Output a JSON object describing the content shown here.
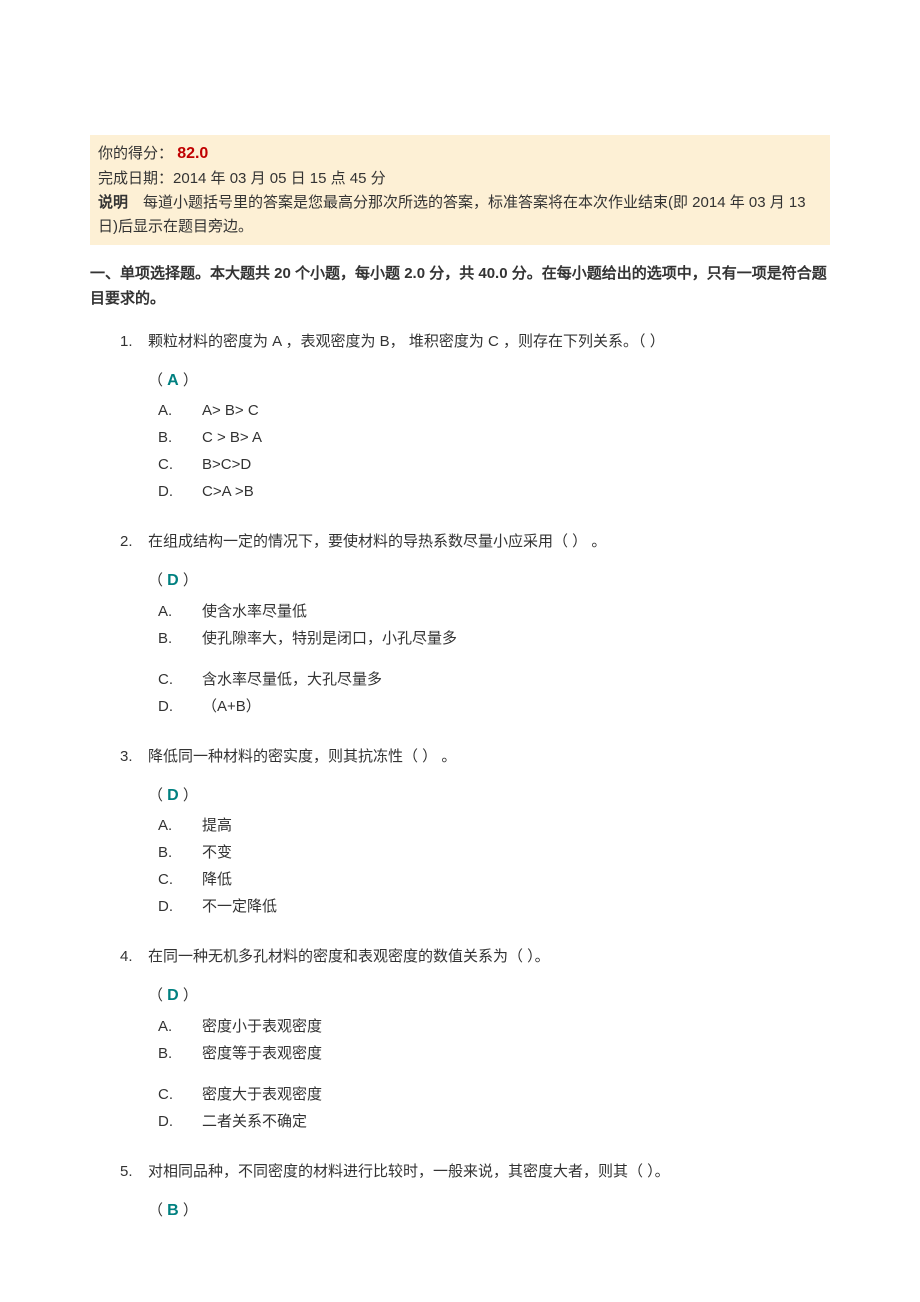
{
  "header": {
    "score_label": "你的得分：",
    "score_value": "82.0",
    "date_label": "完成日期：",
    "date_value": "2014 年 03 月 05 日  15 点 45 分",
    "desc_label": "说明",
    "desc_text": "　每道小题括号里的答案是您最高分那次所选的答案，标准答案将在本次作业结束(即 2014 年 03 月 13 日)后显示在题目旁边。"
  },
  "section": {
    "title": "一、单项选择题。本大题共 20 个小题，每小题  2.0  分，共 40.0 分。在每小题给出的选项中，只有一项是符合题目要求的。"
  },
  "questions": [
    {
      "num": "1.",
      "stem": "颗粒材料的密度为 A ，表观密度为 B，  堆积密度为 C ，则存在下列关系。（  ）",
      "answer": "A",
      "options": [
        {
          "letter": "A.",
          "text": "A> B> C"
        },
        {
          "letter": "B.",
          "text": "C > B> A"
        },
        {
          "letter": "C.",
          "text": "B>C>D"
        },
        {
          "letter": "D.",
          "text": " C>A >B"
        }
      ]
    },
    {
      "num": "2.",
      "stem": "在组成结构一定的情况下，要使材料的导热系数尽量小应采用（  ）  。",
      "answer": "D",
      "options": [
        {
          "letter": "A.",
          "text": "使含水率尽量低"
        },
        {
          "letter": "B.",
          "text": "使孔隙率大，特别是闭口，小孔尽量多"
        },
        {
          "gap": true
        },
        {
          "letter": "C.",
          "text": "含水率尽量低，大孔尽量多"
        },
        {
          "letter": "D.",
          "text": "（A+B）"
        }
      ]
    },
    {
      "num": "3.",
      "stem": "降低同一种材料的密实度，则其抗冻性（  ）  。",
      "answer": "D",
      "options": [
        {
          "letter": "A.",
          "text": "提高"
        },
        {
          "letter": "B.",
          "text": "不变"
        },
        {
          "letter": "C.",
          "text": "降低"
        },
        {
          "letter": "D.",
          "text": "不一定降低"
        }
      ]
    },
    {
      "num": "4.",
      "stem": "在同一种无机多孔材料的密度和表观密度的数值关系为（  ）。",
      "answer": "D",
      "options": [
        {
          "letter": "A.",
          "text": "密度小于表观密度"
        },
        {
          "letter": "B.",
          "text": "密度等于表观密度"
        },
        {
          "gap": true
        },
        {
          "letter": "C.",
          "text": "密度大于表观密度"
        },
        {
          "letter": "D.",
          "text": "二者关系不确定"
        }
      ]
    },
    {
      "num": "5.",
      "stem": "对相同品种，不同密度的材料进行比较时，一般来说，其密度大者，则其（  ）。",
      "answer": "B",
      "options": []
    }
  ]
}
